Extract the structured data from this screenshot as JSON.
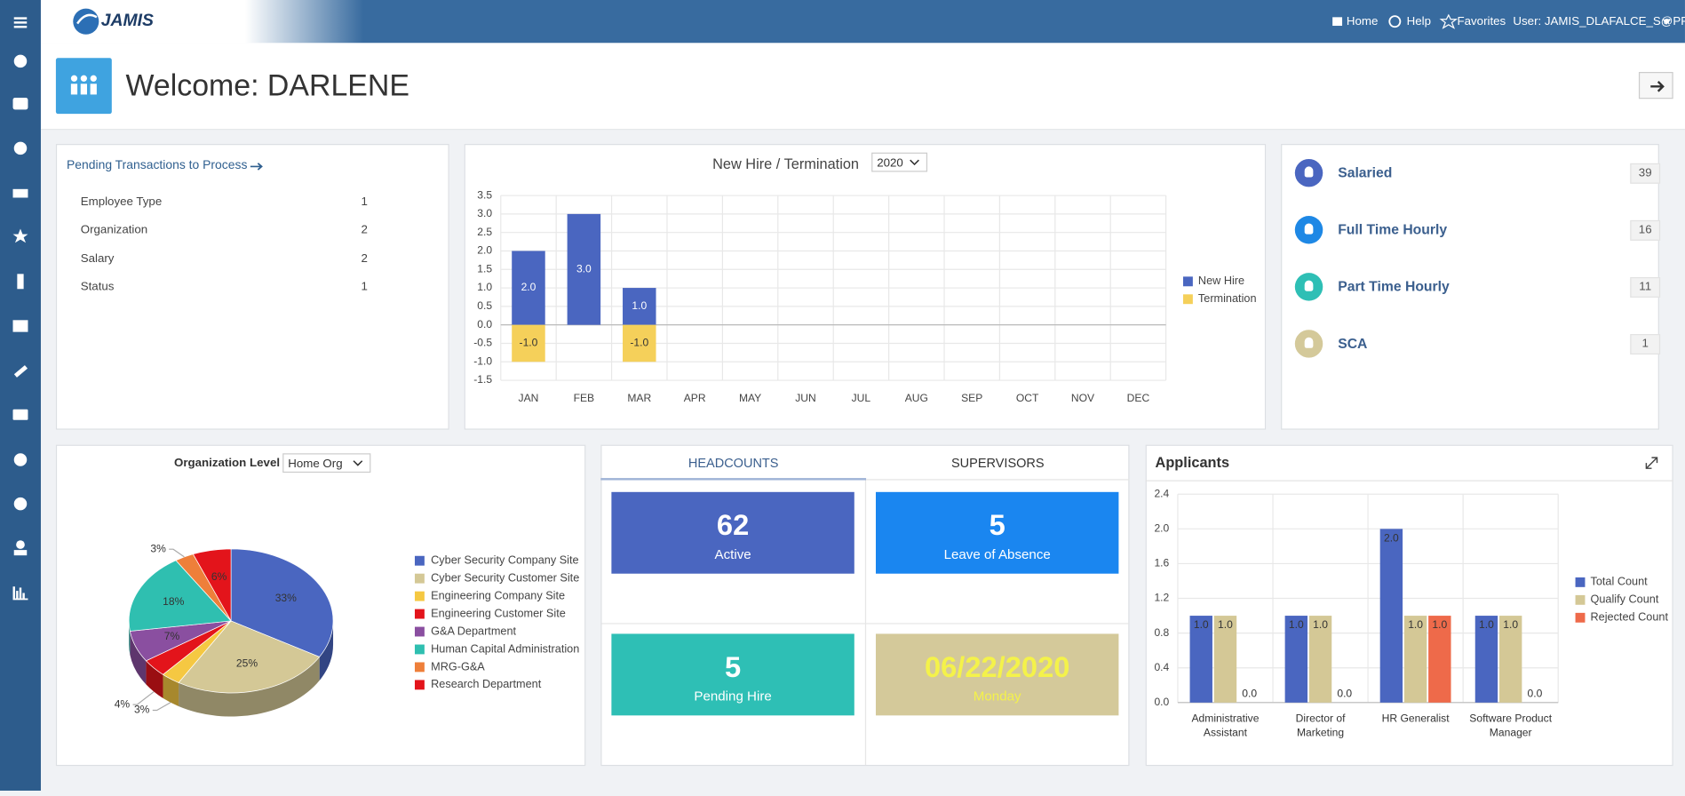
{
  "header": {
    "logo": "JAMIS",
    "nav": [
      "Home",
      "Help",
      "Favorites",
      "User: JAMIS_DLAFALCE_S@PRD"
    ]
  },
  "welcome": "Welcome: DARLENE",
  "pending": {
    "title": "Pending Transactions to Process",
    "rows": [
      [
        "Employee Type",
        1
      ],
      [
        "Organization",
        2
      ],
      [
        "Salary",
        2
      ],
      [
        "Status",
        1
      ]
    ]
  },
  "employee_types": [
    {
      "label": "Salaried",
      "count": 39,
      "color": "#4a66c0"
    },
    {
      "label": "Full Time Hourly",
      "count": 16,
      "color": "#1e88e5"
    },
    {
      "label": "Part Time Hourly",
      "count": 11,
      "color": "#2ebfb5"
    },
    {
      "label": "SCA",
      "count": 1,
      "color": "#d4c99a"
    }
  ],
  "headcounts": {
    "tabs": [
      "HEADCOUNTS",
      "SUPERVISORS"
    ],
    "tiles": [
      {
        "value": 62,
        "label": "Active",
        "color": "#4a66c0"
      },
      {
        "value": 5,
        "label": "Leave of Absence",
        "color": "#1a86f0"
      },
      {
        "value": 5,
        "label": "Pending Hire",
        "color": "#2ebfb5"
      },
      {
        "value": "06/22/2020",
        "label": "Monday",
        "color": "#d4c99a"
      }
    ]
  },
  "chart_data": [
    {
      "type": "bar",
      "title": "New Hire / Termination",
      "year_filter": "2020",
      "stacked": true,
      "grid": true,
      "legend": "right",
      "categories": [
        "JAN",
        "FEB",
        "MAR",
        "APR",
        "MAY",
        "JUN",
        "JUL",
        "AUG",
        "SEP",
        "OCT",
        "NOV",
        "DEC"
      ],
      "series": [
        {
          "name": "New Hire",
          "color": "#4a66c0",
          "values": [
            2,
            3,
            1,
            null,
            null,
            null,
            null,
            null,
            null,
            null,
            null,
            null
          ],
          "value_labels": [
            "2.0",
            "3.0",
            "1.0",
            null,
            null,
            null,
            null,
            null,
            null,
            null,
            null,
            null
          ]
        },
        {
          "name": "Termination",
          "color": "#f5d05a",
          "values": [
            -1,
            null,
            -1,
            null,
            null,
            null,
            null,
            null,
            null,
            null,
            null,
            null
          ],
          "value_labels": [
            "-1.0",
            null,
            "-1.0",
            null,
            null,
            null,
            null,
            null,
            null,
            null,
            null,
            null
          ]
        }
      ],
      "ylim": [
        -1.5,
        3.5
      ],
      "yticks": [
        3.5,
        {
          "value": 3,
          "label": "3.0"
        },
        2.5,
        {
          "value": 2,
          "label": "2.0"
        },
        1.5,
        {
          "value": 1,
          "label": "1.0"
        },
        0.5,
        {
          "value": 0,
          "label": "0.0"
        },
        -0.5,
        {
          "value": -1,
          "label": "-1.0"
        },
        -1.5
      ]
    },
    {
      "type": "pie",
      "filter_label": "Organization Level",
      "filter": "Home Org",
      "legend": "right",
      "categories": [
        "Cyber Security Company Site",
        "Cyber Security Customer Site",
        "Engineering Company Site",
        "Engineering Customer Site",
        "G&A Department",
        "Human Capital Administration",
        "MRG-G&A",
        "Research Department"
      ],
      "values": [
        33,
        25,
        3,
        4,
        7,
        18,
        3,
        6
      ],
      "value_labels": [
        "33%",
        "25%",
        "3%",
        "4%",
        "7%",
        "18%",
        "3%",
        "6%"
      ],
      "colors": [
        "#4a66c0",
        "#d4c896",
        "#f5c842",
        "#e3141b",
        "#8a4fa0",
        "#2fbfb0",
        "#ee7f3a",
        "#e3141b"
      ]
    },
    {
      "type": "bar",
      "title": "Applicants",
      "stacked": false,
      "grid": true,
      "legend": "right",
      "categories": [
        "Administrative Assistant",
        "Director of Marketing",
        "HR Generalist",
        "Software Product Manager"
      ],
      "series": [
        {
          "name": "Total Count",
          "color": "#4a66c0",
          "values": [
            1,
            1,
            2,
            1
          ],
          "value_labels": [
            "1.0",
            "1.0",
            "2.0",
            "1.0"
          ]
        },
        {
          "name": "Qualify Count",
          "color": "#d4c896",
          "values": [
            1,
            1,
            1,
            1
          ],
          "value_labels": [
            "1.0",
            "1.0",
            "1.0",
            "1.0"
          ]
        },
        {
          "name": "Rejected Count",
          "color": "#ee6a4a",
          "values": [
            0,
            0,
            1,
            0
          ],
          "value_labels": [
            "0.0",
            "0.0",
            "1.0",
            "0.0"
          ]
        }
      ],
      "ylim": [
        0,
        2.4
      ],
      "yticks": [
        {
          "value": 0,
          "label": "0.0"
        },
        0.4,
        0.8,
        1.2,
        1.6,
        {
          "value": 2,
          "label": "2.0"
        },
        2.4
      ]
    }
  ]
}
